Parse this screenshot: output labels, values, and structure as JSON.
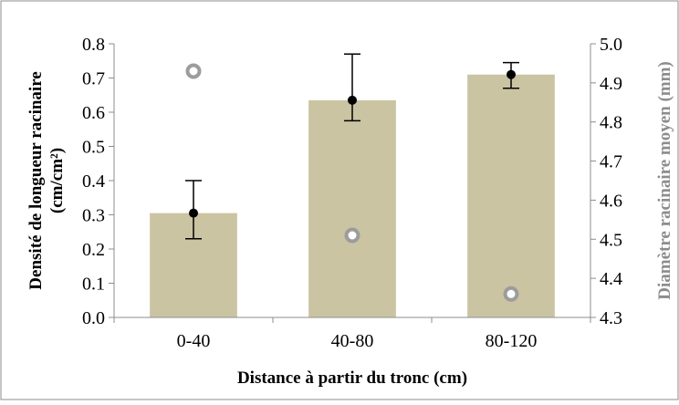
{
  "colors": {
    "bar_fill": "#cbc4a2",
    "diameter_marker": "#9c9c9c",
    "density_marker": "#000000",
    "frame": "#8c8c8c"
  },
  "chart_data": {
    "type": "bar",
    "title": "",
    "categories": [
      "0-40",
      "40-80",
      "80-120"
    ],
    "xlabel": "Distance à partir du tronc (cm)",
    "ylabel_lines": [
      "Densité  de longueur racinaire",
      "(cm/cm²)"
    ],
    "y2label": "Diamètre racinaire moyen (mm)",
    "ylim": [
      0,
      0.8
    ],
    "y_ticks": [
      "0.0",
      "0.1",
      "0.2",
      "0.3",
      "0.4",
      "0.5",
      "0.6",
      "0.7",
      "0.8"
    ],
    "y2lim": [
      4.3,
      5.0
    ],
    "y2_ticks": [
      "4.3",
      "4.4",
      "4.5",
      "4.6",
      "4.7",
      "4.8",
      "4.9",
      "5.0"
    ],
    "grid": false,
    "series": [
      {
        "chart": "bar",
        "axis": "left",
        "values": [
          0.305,
          0.635,
          0.71
        ]
      },
      {
        "chart": "point_errorbar",
        "axis": "left",
        "values": [
          0.305,
          0.635,
          0.71
        ],
        "err_low": [
          0.23,
          0.575,
          0.67
        ],
        "err_high": [
          0.4,
          0.77,
          0.745
        ]
      },
      {
        "chart": "point_open",
        "axis": "right",
        "values": [
          4.93,
          4.51,
          4.36
        ]
      }
    ]
  }
}
